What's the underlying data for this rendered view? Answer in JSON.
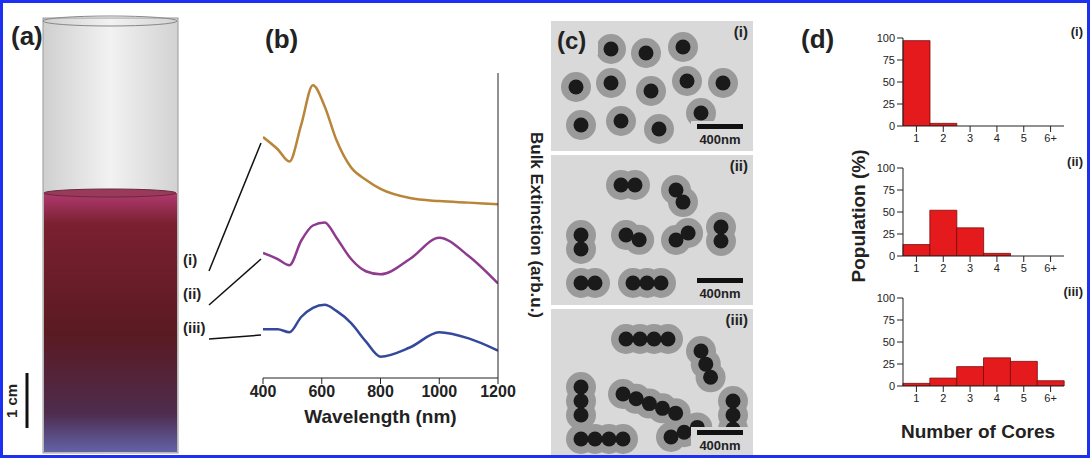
{
  "panels": {
    "a": {
      "letter": "(a)",
      "scale_bar": "1 cm"
    },
    "c": {
      "letter": "(c)",
      "scale_bar": "400nm",
      "labels": [
        "(i)",
        "(ii)",
        "(iii)"
      ]
    },
    "d": {
      "letter": "(d)",
      "ylabel": "Population (%)",
      "xlabel": "Number of Cores"
    }
  },
  "chart_data": [
    {
      "type": "line",
      "title": "(b)",
      "x_label": "Wavelength (nm)",
      "y_label": "Bulk Extinction (arb.u.)",
      "x": [
        400,
        450,
        490,
        530,
        570,
        610,
        650,
        700,
        750,
        800,
        900,
        1000,
        1100,
        1200
      ],
      "series": [
        {
          "name": "(i)",
          "color": "#b8853a",
          "values": [
            7.9,
            7.5,
            7.1,
            8.3,
            9.6,
            8.9,
            7.8,
            6.9,
            6.5,
            6.2,
            5.9,
            5.8,
            5.75,
            5.7
          ]
        },
        {
          "name": "(ii)",
          "color": "#8e3a8e",
          "values": [
            4.1,
            3.9,
            3.7,
            4.5,
            5.0,
            5.1,
            4.6,
            3.9,
            3.5,
            3.4,
            3.9,
            4.6,
            4.0,
            3.1
          ]
        },
        {
          "name": "(iii)",
          "color": "#34489c",
          "values": [
            1.6,
            1.6,
            1.5,
            2.0,
            2.3,
            2.4,
            2.2,
            1.8,
            1.2,
            0.7,
            1.0,
            1.5,
            1.3,
            0.9
          ]
        }
      ],
      "xlim": [
        400,
        1200
      ],
      "xticks": [
        400,
        600,
        800,
        1000,
        1200
      ],
      "ylim": [
        0,
        10
      ],
      "yticks": [],
      "tick_labels": "x",
      "grid": false
    },
    {
      "type": "bar",
      "title": "(i)",
      "categories": [
        "1",
        "2",
        "3",
        "4",
        "5",
        "6+"
      ],
      "values": [
        97,
        3,
        0,
        0,
        0,
        0
      ],
      "color": "#e41a1c",
      "ylim": [
        0,
        100
      ],
      "yticks": [
        0,
        25,
        50,
        75,
        100
      ]
    },
    {
      "type": "bar",
      "title": "(ii)",
      "categories": [
        "1",
        "2",
        "3",
        "4",
        "5",
        "6+"
      ],
      "values": [
        13,
        52,
        32,
        3,
        0,
        0
      ],
      "color": "#e41a1c",
      "ylim": [
        0,
        100
      ],
      "yticks": [
        0,
        25,
        50,
        75,
        100
      ]
    },
    {
      "type": "bar",
      "title": "(iii)",
      "categories": [
        "1",
        "2",
        "3",
        "4",
        "5",
        "6+"
      ],
      "values": [
        3,
        9,
        22,
        32,
        28,
        6
      ],
      "color": "#e41a1c",
      "ylim": [
        0,
        100
      ],
      "yticks": [
        0,
        25,
        50,
        75,
        100
      ]
    }
  ]
}
